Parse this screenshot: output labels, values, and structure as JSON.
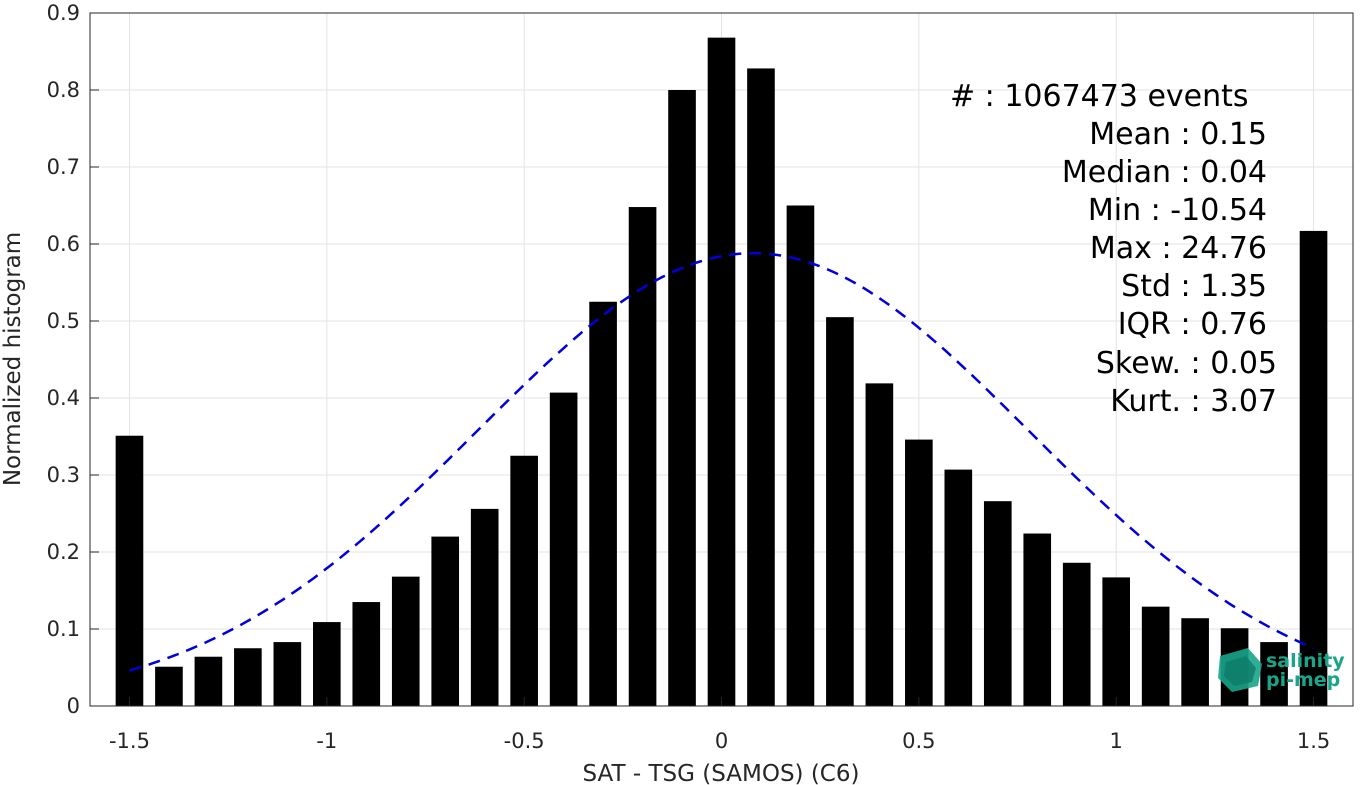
{
  "chart_data": {
    "type": "bar",
    "xlabel": "SAT - TSG (SAMOS) (C6)",
    "ylabel": "Normalized histogram",
    "xlim": [
      -1.6,
      1.6
    ],
    "ylim": [
      0,
      0.9
    ],
    "grid": true,
    "x_ticks": [
      "-1.5",
      "-1",
      "-0.5",
      "0",
      "0.5",
      "1",
      "1.5"
    ],
    "x_tick_values": [
      -1.5,
      -1,
      -0.5,
      0,
      0.5,
      1,
      1.5
    ],
    "y_ticks": [
      "0",
      "0.1",
      "0.2",
      "0.3",
      "0.4",
      "0.5",
      "0.6",
      "0.7",
      "0.8",
      "0.9"
    ],
    "y_tick_values": [
      0,
      0.1,
      0.2,
      0.3,
      0.4,
      0.5,
      0.6,
      0.7,
      0.8,
      0.9
    ],
    "bar_width": 0.07,
    "bar_color": "#000000",
    "x": [
      -1.5,
      -1.4,
      -1.3,
      -1.2,
      -1.1,
      -1.0,
      -0.9,
      -0.8,
      -0.7,
      -0.6,
      -0.5,
      -0.4,
      -0.3,
      -0.2,
      -0.1,
      0.0,
      0.1,
      0.2,
      0.3,
      0.4,
      0.5,
      0.6,
      0.7,
      0.8,
      0.9,
      1.0,
      1.1,
      1.2,
      1.3,
      1.4,
      1.5
    ],
    "values": [
      0.351,
      0.051,
      0.064,
      0.075,
      0.083,
      0.109,
      0.135,
      0.168,
      0.22,
      0.256,
      0.325,
      0.407,
      0.525,
      0.648,
      0.8,
      0.868,
      0.828,
      0.65,
      0.505,
      0.419,
      0.346,
      0.307,
      0.266,
      0.224,
      0.186,
      0.167,
      0.129,
      0.114,
      0.101,
      0.083,
      0.617
    ],
    "fit_curve": {
      "style": "dashed",
      "color": "#0000dd",
      "mean": 0.08,
      "std": 0.7,
      "peak": 0.588,
      "x_range": [
        -1.5,
        1.5
      ]
    }
  },
  "stats": {
    "count_label": "#  : 1067473 events",
    "mean": "Mean : 0.15",
    "median": "Median : 0.04",
    "min": "Min : -10.54",
    "max": "Max : 24.76",
    "std": "Std : 1.35",
    "iqr": "IQR : 0.76",
    "skew": "Skew. : 0.05",
    "kurt": "Kurt. : 3.07"
  },
  "logo": {
    "line1": "salinity",
    "line2": "pi-mep",
    "color": "#1aa58a"
  }
}
